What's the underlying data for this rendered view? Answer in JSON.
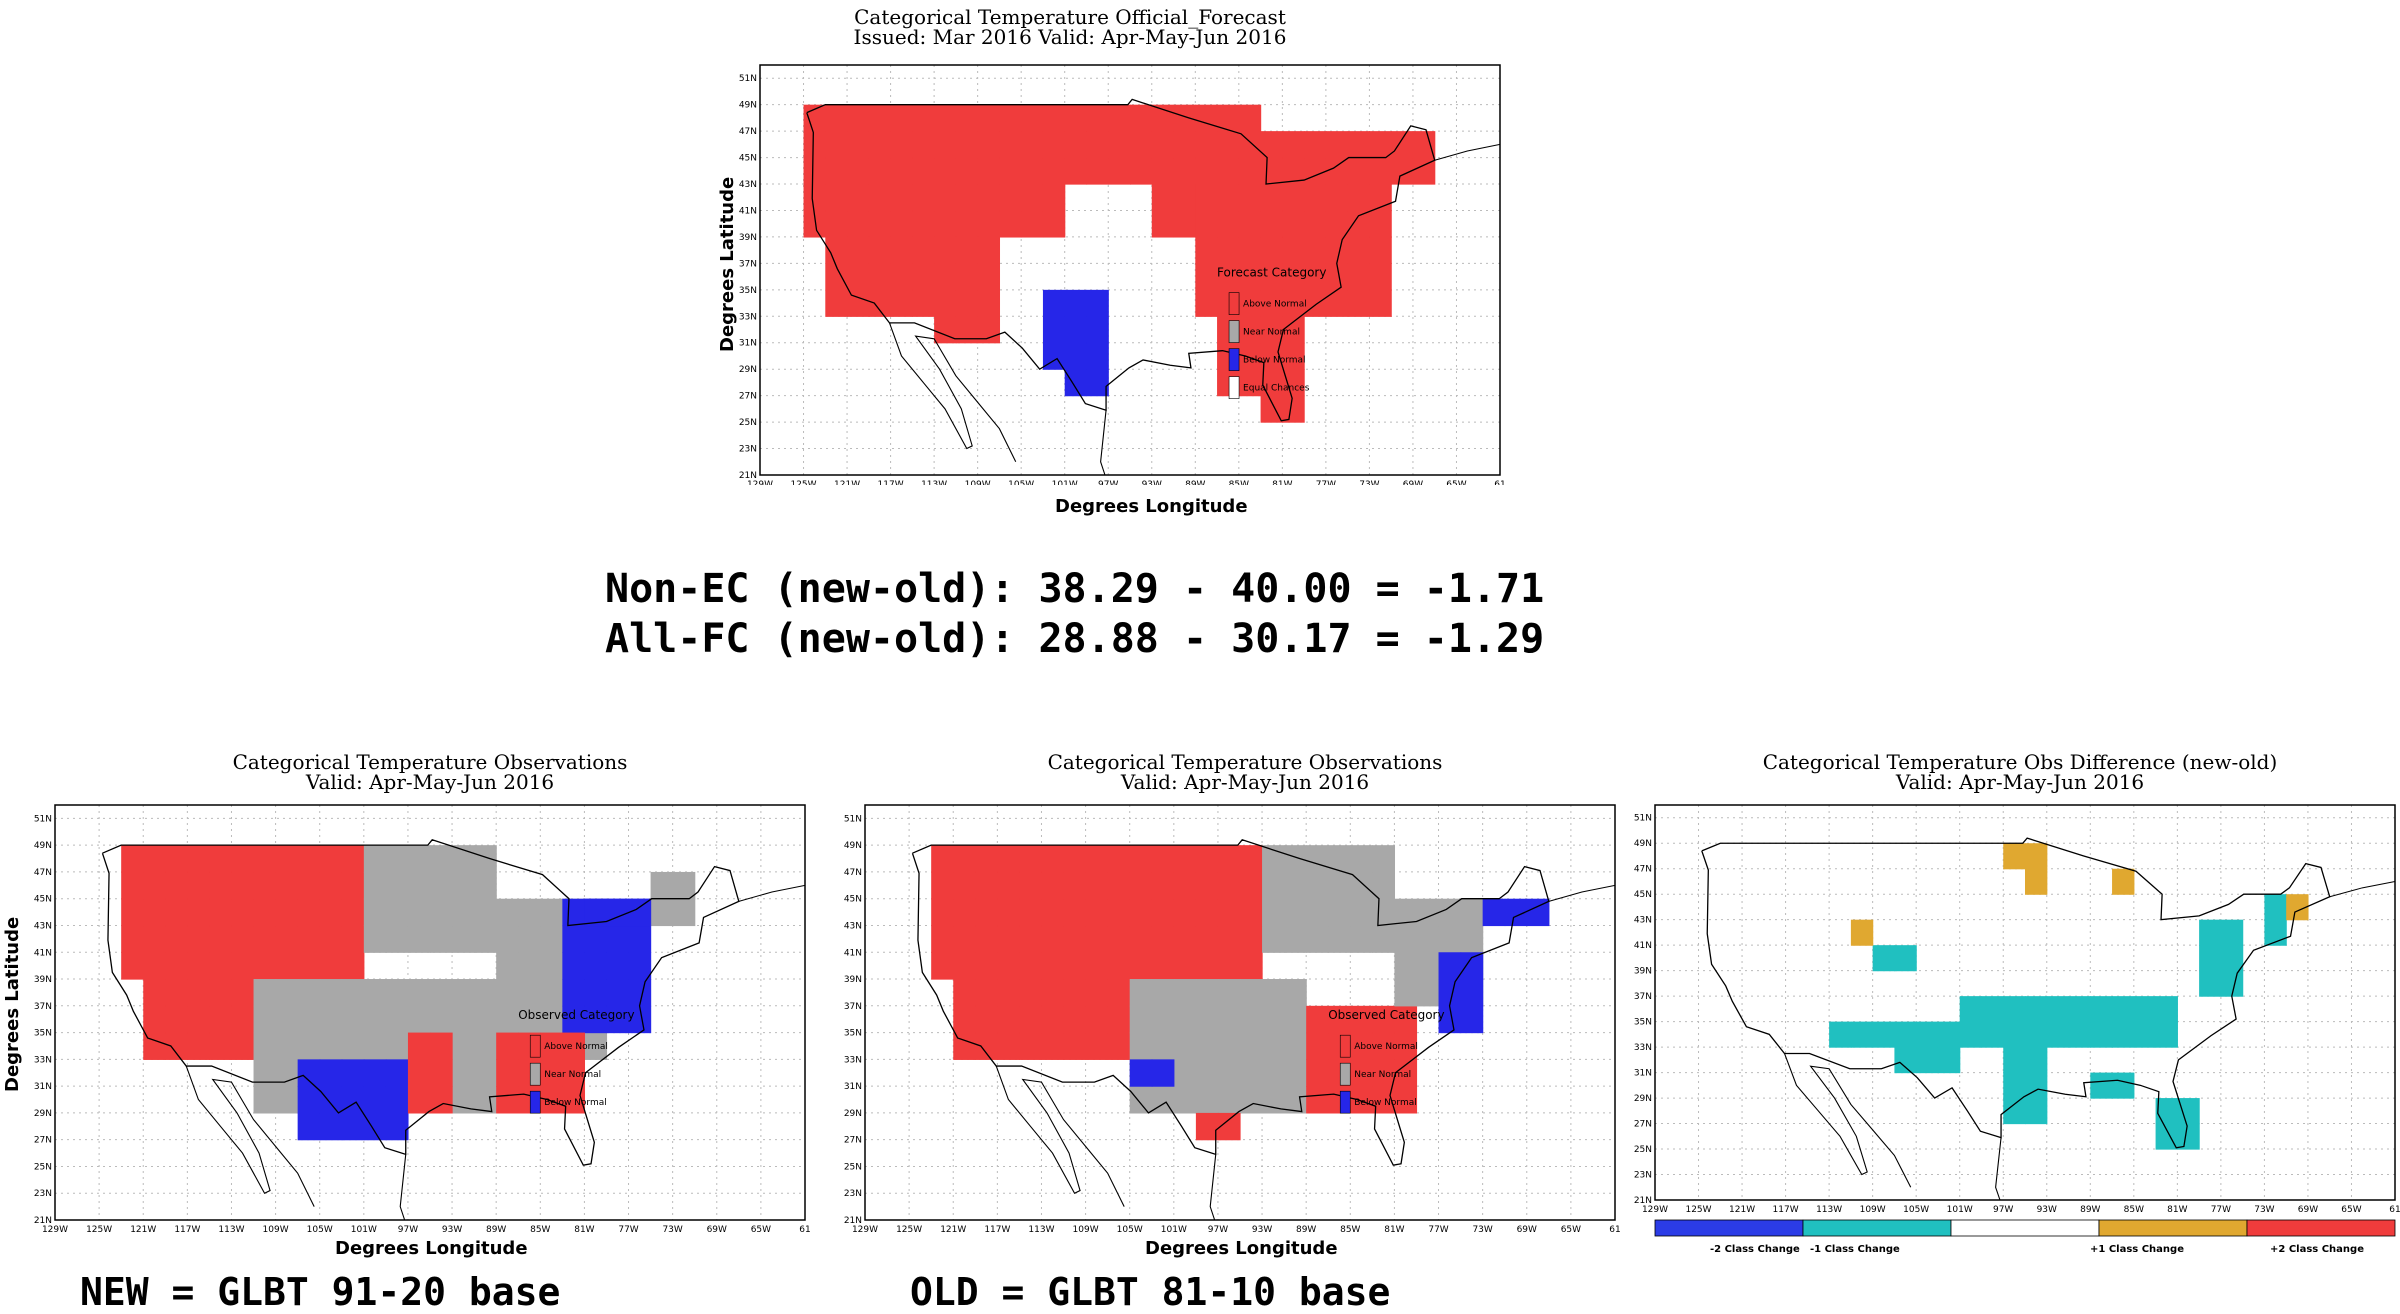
{
  "top": {
    "title1": "Categorical Temperature Official_Forecast",
    "title2": "Issued: Mar 2016 Valid: Apr-May-Jun 2016",
    "xlabel": "Degrees Longitude",
    "ylabel": "Degrees Latitude",
    "legend_title": "Forecast Category",
    "legend": [
      "Above Normal",
      "Near Normal",
      "Below Normal",
      "Equal Chances"
    ]
  },
  "stats": {
    "line1": "Non-EC (new-old): 38.29 - 40.00 = -1.71",
    "line2": "All-FC (new-old): 28.88 - 30.17 = -1.29"
  },
  "left": {
    "title1": "Categorical Temperature Observations",
    "title2": "Valid: Apr-May-Jun 2016",
    "xlabel": "Degrees Longitude",
    "ylabel": "Degrees Latitude",
    "legend_title": "Observed Category",
    "legend": [
      "Above Normal",
      "Near Normal",
      "Below Normal"
    ],
    "caption": "NEW = GLBT 91-20 base"
  },
  "middle": {
    "title1": "Categorical Temperature Observations",
    "title2": "Valid: Apr-May-Jun 2016",
    "xlabel": "Degrees Longitude",
    "legend_title": "Observed Category",
    "legend": [
      "Above Normal",
      "Near Normal",
      "Below Normal"
    ],
    "caption": "OLD = GLBT 81-10 base"
  },
  "right": {
    "title1": "Categorical Temperature Obs Difference (new-old)",
    "title2": "Valid: Apr-May-Jun 2016",
    "colorbar": [
      "-2 Class Change",
      "-1 Class Change",
      "+1 Class Change",
      "+2 Class Change"
    ]
  },
  "axes": {
    "lat_ticks": [
      "51N",
      "49N",
      "47N",
      "45N",
      "43N",
      "41N",
      "39N",
      "37N",
      "35N",
      "33N",
      "31N",
      "29N",
      "27N",
      "25N",
      "23N",
      "21N"
    ],
    "lon_ticks": [
      "129W",
      "125W",
      "121W",
      "117W",
      "113W",
      "109W",
      "105W",
      "101W",
      "97W",
      "93W",
      "89W",
      "85W",
      "81W",
      "77W",
      "73W",
      "69W",
      "65W",
      "61"
    ]
  },
  "colors": {
    "above": "#f03c3c",
    "near": "#a8a8a8",
    "below": "#2626e8",
    "minus2": "#2b3ce6",
    "minus1": "#20c0c0",
    "plus1": "#e0a830",
    "plus2": "#f03c3c"
  }
}
